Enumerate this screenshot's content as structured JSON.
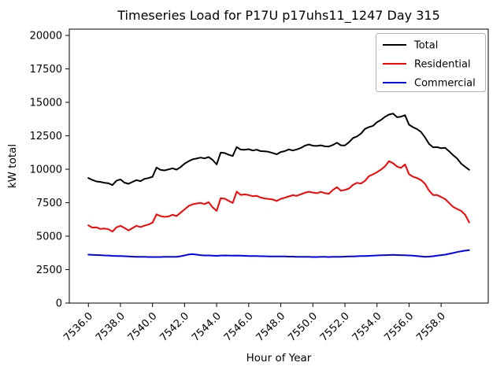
{
  "chart_data": {
    "type": "line",
    "title": "Timeseries Load for P17U p17uhs11_1247  Day 315",
    "xlabel": "Hour of Year",
    "ylabel": "kW total",
    "xlim": [
      7534.81,
      7560.94
    ],
    "ylim": [
      0,
      20470
    ],
    "grid": false,
    "legend_position": "upper right",
    "xticks": {
      "values": [
        7536,
        7538,
        7540,
        7542,
        7544,
        7546,
        7548,
        7550,
        7552,
        7554,
        7556,
        7558
      ],
      "labels": [
        "7536.0",
        "7538.0",
        "7540.0",
        "7542.0",
        "7544.0",
        "7546.0",
        "7548.0",
        "7550.0",
        "7552.0",
        "7554.0",
        "7556.0",
        "7558.0"
      ]
    },
    "yticks": {
      "values": [
        0,
        2500,
        5000,
        7500,
        10000,
        12500,
        15000,
        17500,
        20000
      ],
      "labels": [
        "0",
        "2500",
        "5000",
        "7500",
        "10000",
        "12500",
        "15000",
        "17500",
        "20000"
      ]
    },
    "x": [
      7536.0,
      7536.25,
      7536.5,
      7536.75,
      7537.0,
      7537.25,
      7537.5,
      7537.75,
      7538.0,
      7538.25,
      7538.5,
      7538.75,
      7539.0,
      7539.25,
      7539.5,
      7539.75,
      7540.0,
      7540.25,
      7540.5,
      7540.75,
      7541.0,
      7541.25,
      7541.5,
      7541.75,
      7542.0,
      7542.25,
      7542.5,
      7542.75,
      7543.0,
      7543.25,
      7543.5,
      7543.75,
      7544.0,
      7544.25,
      7544.5,
      7544.75,
      7545.0,
      7545.25,
      7545.5,
      7545.75,
      7546.0,
      7546.25,
      7546.5,
      7546.75,
      7547.0,
      7547.25,
      7547.5,
      7547.75,
      7548.0,
      7548.25,
      7548.5,
      7548.75,
      7549.0,
      7549.25,
      7549.5,
      7549.75,
      7550.0,
      7550.25,
      7550.5,
      7550.75,
      7551.0,
      7551.25,
      7551.5,
      7551.75,
      7552.0,
      7552.25,
      7552.5,
      7552.75,
      7553.0,
      7553.25,
      7553.5,
      7553.75,
      7554.0,
      7554.25,
      7554.5,
      7554.75,
      7555.0,
      7555.25,
      7555.5,
      7555.75,
      7556.0,
      7556.25,
      7556.5,
      7556.75,
      7557.0,
      7557.25,
      7557.5,
      7557.75,
      7558.0,
      7558.25,
      7558.5,
      7558.75,
      7559.0,
      7559.25,
      7559.5,
      7559.75
    ],
    "series": [
      {
        "name": "Total",
        "color": "#000000",
        "values": [
          9340,
          9200,
          9090,
          9050,
          8990,
          8950,
          8820,
          9140,
          9240,
          9000,
          8910,
          9050,
          9190,
          9110,
          9280,
          9340,
          9440,
          10130,
          9950,
          9910,
          9990,
          10070,
          9970,
          10160,
          10420,
          10600,
          10740,
          10800,
          10870,
          10810,
          10910,
          10700,
          10360,
          11240,
          11210,
          11080,
          10990,
          11660,
          11470,
          11460,
          11500,
          11400,
          11460,
          11350,
          11340,
          11300,
          11210,
          11120,
          11290,
          11350,
          11480,
          11400,
          11480,
          11590,
          11760,
          11850,
          11760,
          11740,
          11790,
          11710,
          11700,
          11810,
          11980,
          11790,
          11780,
          12020,
          12330,
          12450,
          12660,
          13010,
          13150,
          13240,
          13510,
          13680,
          13920,
          14090,
          14160,
          13890,
          13930,
          14040,
          13330,
          13140,
          13000,
          12780,
          12370,
          11890,
          11640,
          11650,
          11570,
          11600,
          11340,
          11050,
          10800,
          10420,
          10180,
          9960
        ]
      },
      {
        "name": "Residential",
        "color": "#ff0000",
        "values": [
          5810,
          5640,
          5660,
          5540,
          5570,
          5520,
          5340,
          5660,
          5770,
          5620,
          5430,
          5600,
          5770,
          5680,
          5780,
          5870,
          6010,
          6630,
          6500,
          6440,
          6470,
          6600,
          6500,
          6750,
          7000,
          7250,
          7380,
          7440,
          7480,
          7400,
          7540,
          7150,
          6890,
          7830,
          7800,
          7640,
          7480,
          8330,
          8080,
          8120,
          8070,
          7990,
          8010,
          7880,
          7820,
          7780,
          7740,
          7630,
          7790,
          7870,
          7970,
          8060,
          8020,
          8130,
          8240,
          8320,
          8260,
          8210,
          8310,
          8210,
          8170,
          8450,
          8660,
          8400,
          8450,
          8560,
          8830,
          8990,
          8930,
          9130,
          9480,
          9620,
          9780,
          9970,
          10220,
          10600,
          10450,
          10200,
          10100,
          10360,
          9630,
          9440,
          9340,
          9190,
          8910,
          8400,
          8070,
          8070,
          7930,
          7770,
          7480,
          7190,
          7030,
          6890,
          6600,
          6030
        ]
      },
      {
        "name": "Commercial",
        "color": "#0000ff",
        "values": [
          3620,
          3600,
          3590,
          3580,
          3560,
          3550,
          3530,
          3520,
          3510,
          3500,
          3480,
          3470,
          3460,
          3450,
          3450,
          3440,
          3440,
          3440,
          3440,
          3450,
          3450,
          3460,
          3460,
          3500,
          3560,
          3630,
          3650,
          3620,
          3580,
          3560,
          3560,
          3540,
          3530,
          3550,
          3560,
          3550,
          3540,
          3550,
          3540,
          3530,
          3520,
          3520,
          3510,
          3500,
          3500,
          3490,
          3480,
          3480,
          3490,
          3480,
          3470,
          3470,
          3460,
          3460,
          3450,
          3450,
          3440,
          3440,
          3450,
          3450,
          3440,
          3450,
          3460,
          3460,
          3470,
          3480,
          3490,
          3500,
          3510,
          3520,
          3530,
          3540,
          3560,
          3570,
          3580,
          3590,
          3600,
          3590,
          3580,
          3570,
          3560,
          3540,
          3520,
          3490,
          3460,
          3470,
          3500,
          3540,
          3580,
          3620,
          3680,
          3740,
          3810,
          3870,
          3920,
          3960
        ]
      }
    ]
  }
}
